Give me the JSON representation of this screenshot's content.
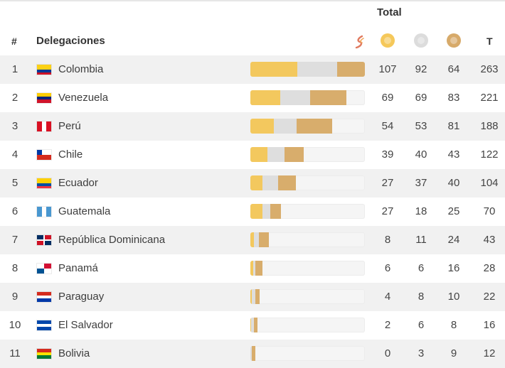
{
  "header": {
    "total_label": "Total",
    "rank_label": "#",
    "delegations_label": "Delegaciones",
    "total_col_label": "T",
    "medal_icons": [
      "gold-medal-icon",
      "silver-medal-icon",
      "bronze-medal-icon"
    ]
  },
  "colors": {
    "gold": "#f3c85e",
    "silver": "#dedede",
    "bronze": "#d8ad6c",
    "bar_bg": "#f5f5f5"
  },
  "rows": [
    {
      "rank": "1",
      "name": "Colombia",
      "gold": 107,
      "silver": 92,
      "bronze": 64,
      "total": 263,
      "flag": [
        [
          "#fcd116",
          2
        ],
        [
          "#003893",
          1
        ],
        [
          "#ce1126",
          1
        ]
      ],
      "flag_dir": "h"
    },
    {
      "rank": "2",
      "name": "Venezuela",
      "gold": 69,
      "silver": 69,
      "bronze": 83,
      "total": 221,
      "flag": [
        [
          "#ffcc00",
          1
        ],
        [
          "#00247d",
          1
        ],
        [
          "#cf142b",
          1
        ]
      ],
      "flag_dir": "h"
    },
    {
      "rank": "3",
      "name": "Perú",
      "gold": 54,
      "silver": 53,
      "bronze": 81,
      "total": 188,
      "flag": [
        [
          "#d91023",
          1
        ],
        [
          "#ffffff",
          1
        ],
        [
          "#d91023",
          1
        ]
      ],
      "flag_dir": "v"
    },
    {
      "rank": "4",
      "name": "Chile",
      "gold": 39,
      "silver": 40,
      "bronze": 43,
      "total": 122,
      "flag": [
        [
          "#ffffff",
          1
        ],
        [
          "#d52b1e",
          1
        ]
      ],
      "flag_dir": "h",
      "canton": "#0039a6"
    },
    {
      "rank": "5",
      "name": "Ecuador",
      "gold": 27,
      "silver": 37,
      "bronze": 40,
      "total": 104,
      "flag": [
        [
          "#ffd100",
          2
        ],
        [
          "#034ea2",
          1
        ],
        [
          "#ef3340",
          1
        ]
      ],
      "flag_dir": "h"
    },
    {
      "rank": "6",
      "name": "Guatemala",
      "gold": 27,
      "silver": 18,
      "bronze": 25,
      "total": 70,
      "flag": [
        [
          "#4997d0",
          1
        ],
        [
          "#ffffff",
          1
        ],
        [
          "#4997d0",
          1
        ]
      ],
      "flag_dir": "v"
    },
    {
      "rank": "7",
      "name": "República Dominicana",
      "gold": 8,
      "silver": 11,
      "bronze": 24,
      "total": 43,
      "flag": [
        [
          "#002d62",
          1
        ],
        [
          "#ce1126",
          1
        ]
      ],
      "flag_dir": "q"
    },
    {
      "rank": "8",
      "name": "Panamá",
      "gold": 6,
      "silver": 6,
      "bronze": 16,
      "total": 28,
      "flag": [
        [
          "#ffffff",
          1
        ],
        [
          "#d21034",
          1
        ]
      ],
      "flag_dir": "p"
    },
    {
      "rank": "9",
      "name": "Paraguay",
      "gold": 4,
      "silver": 8,
      "bronze": 10,
      "total": 22,
      "flag": [
        [
          "#d52b1e",
          1
        ],
        [
          "#ffffff",
          1
        ],
        [
          "#0038a8",
          1
        ]
      ],
      "flag_dir": "h"
    },
    {
      "rank": "10",
      "name": "El Salvador",
      "gold": 2,
      "silver": 6,
      "bronze": 8,
      "total": 16,
      "flag": [
        [
          "#0047ab",
          1
        ],
        [
          "#ffffff",
          1
        ],
        [
          "#0047ab",
          1
        ]
      ],
      "flag_dir": "h"
    },
    {
      "rank": "11",
      "name": "Bolivia",
      "gold": 0,
      "silver": 3,
      "bronze": 9,
      "total": 12,
      "flag": [
        [
          "#d52b1e",
          1
        ],
        [
          "#f9e300",
          1
        ],
        [
          "#007934",
          1
        ]
      ],
      "flag_dir": "h"
    }
  ]
}
